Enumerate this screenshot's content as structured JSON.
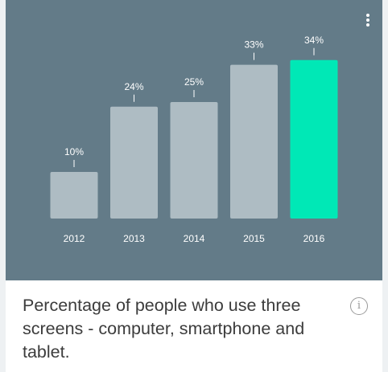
{
  "chart_data": {
    "type": "bar",
    "categories": [
      "2012",
      "2013",
      "2014",
      "2015",
      "2016"
    ],
    "values": [
      10,
      24,
      25,
      33,
      34
    ],
    "data_labels": [
      "10%",
      "24%",
      "25%",
      "33%",
      "34%"
    ],
    "highlight_index": 4,
    "title": "Percentage of people who use three screens - computer, smartphone and tablet.",
    "xlabel": "",
    "ylabel": "",
    "ylim": [
      0,
      34
    ],
    "grid": false,
    "legend": "none"
  },
  "colors": {
    "background": "#637b88",
    "bar": "#aebcc3",
    "highlight_bar": "#00e8b6",
    "text": "#ffffff",
    "caption_text": "#3c3c3c"
  },
  "icons": {
    "menu": "more-vert-icon",
    "info": "info-icon"
  },
  "info_glyph": "i"
}
